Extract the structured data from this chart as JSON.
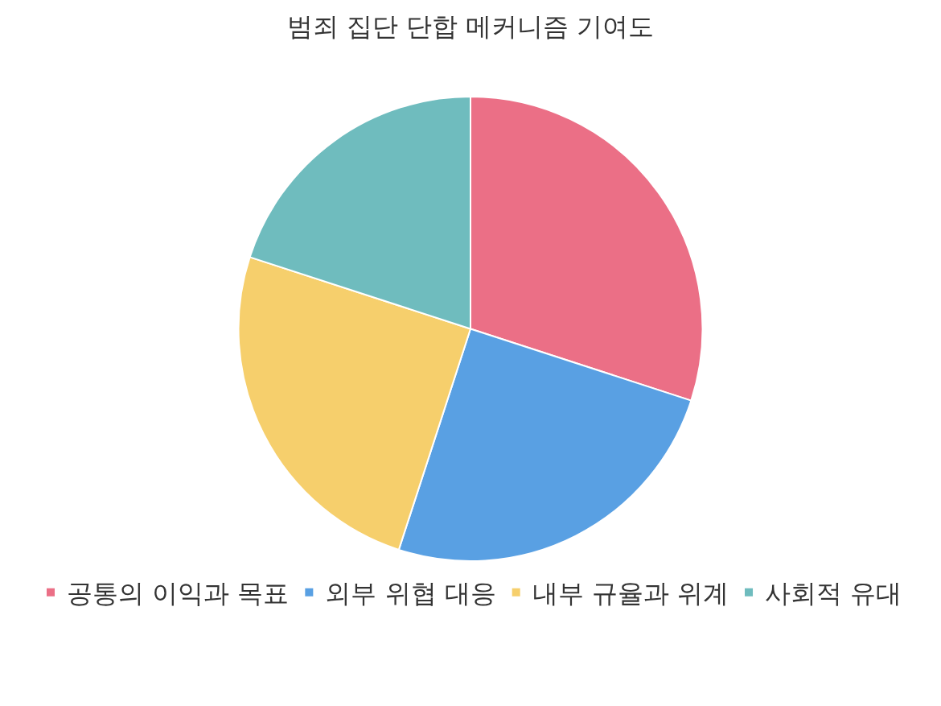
{
  "chart_data": {
    "type": "pie",
    "title": "범죄 집단 단합 메커니즘 기여도",
    "categories": [
      "공통의 이익과 목표",
      "외부 위협 대응",
      "내부 규율과 위계",
      "사회적 유대"
    ],
    "values": [
      30,
      25,
      25,
      20
    ],
    "colors": [
      "#eb6f86",
      "#59a0e3",
      "#f6cf6c",
      "#6fbcbe"
    ],
    "legend": "bottom"
  }
}
